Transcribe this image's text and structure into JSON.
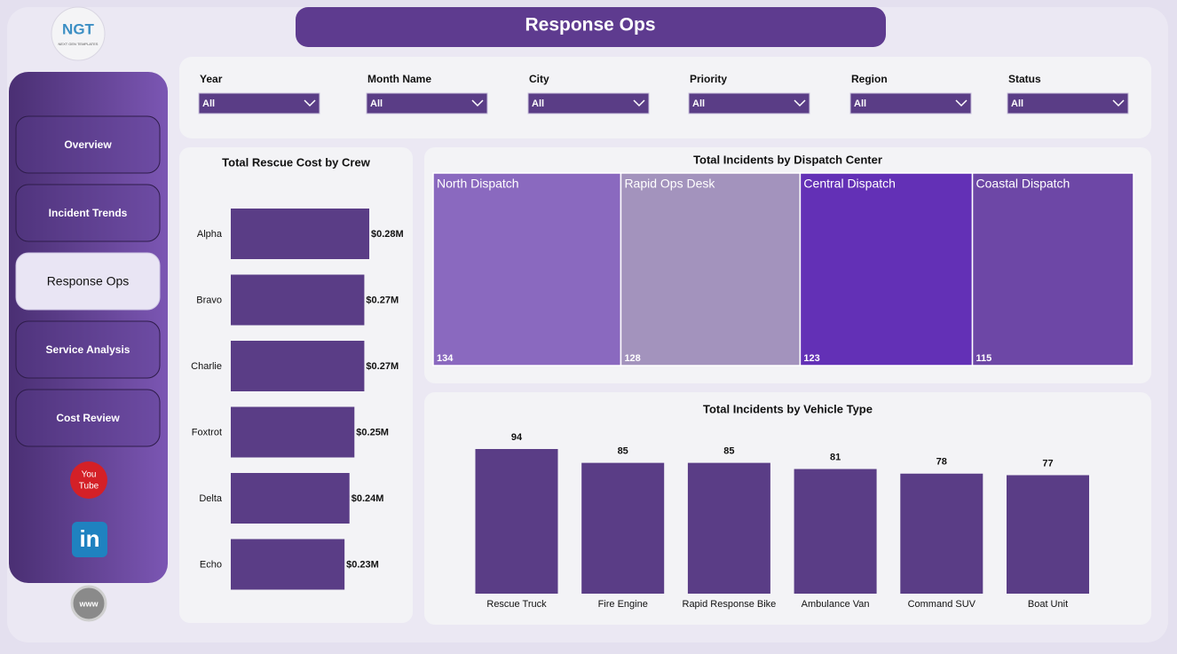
{
  "header": {
    "title": "Response Ops"
  },
  "logo": {
    "text": "NGT",
    "subtitle": "NEXT GEN TEMPLATES"
  },
  "nav": [
    "Overview",
    "Incident Trends",
    "Response Ops",
    "Service Analysis",
    "Cost Review"
  ],
  "active_nav": 2,
  "icons": {
    "youtube": [
      "You",
      "Tube"
    ],
    "linkedin": "in",
    "web": "www"
  },
  "filters": [
    {
      "label": "Year",
      "value": "All"
    },
    {
      "label": "Month Name",
      "value": "All"
    },
    {
      "label": "City",
      "value": "All"
    },
    {
      "label": "Priority",
      "value": "All"
    },
    {
      "label": "Region",
      "value": "All"
    },
    {
      "label": "Status",
      "value": "All"
    }
  ],
  "chart_data": [
    {
      "type": "bar",
      "horizontal": true,
      "title": "Total Rescue Cost by Crew",
      "categories": [
        "Alpha",
        "Bravo",
        "Charlie",
        "Foxtrot",
        "Delta",
        "Echo"
      ],
      "values": [
        0.28,
        0.27,
        0.27,
        0.25,
        0.24,
        0.23
      ],
      "value_labels": [
        "$0.28M",
        "$0.27M",
        "$0.27M",
        "$0.25M",
        "$0.24M",
        "$0.23M"
      ],
      "color": "#5a3d86"
    },
    {
      "type": "treemap",
      "title": "Total Incidents by Dispatch Center",
      "categories": [
        "North Dispatch",
        "Rapid Ops Desk",
        "Central Dispatch",
        "Coastal Dispatch"
      ],
      "values": [
        134,
        128,
        123,
        115
      ],
      "colors": [
        "#8a69bf",
        "#a393bd",
        "#6330b6",
        "#6d47a6"
      ]
    },
    {
      "type": "bar",
      "horizontal": false,
      "title": "Total Incidents by Vehicle Type",
      "categories": [
        "Rescue Truck",
        "Fire Engine",
        "Rapid Response Bike",
        "Ambulance Van",
        "Command SUV",
        "Boat Unit"
      ],
      "values": [
        94,
        85,
        85,
        81,
        78,
        77
      ],
      "color": "#5a3d86"
    }
  ]
}
